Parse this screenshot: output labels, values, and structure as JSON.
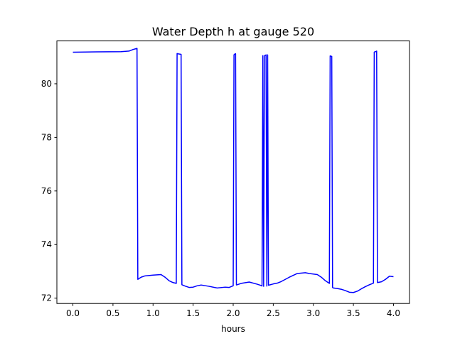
{
  "chart_data": {
    "type": "line",
    "title": "Water Depth h at gauge 520",
    "xlabel": "hours",
    "ylabel": "",
    "xlim": [
      -0.2,
      4.2
    ],
    "ylim": [
      71.8,
      81.6
    ],
    "xticks": [
      0.0,
      0.5,
      1.0,
      1.5,
      2.0,
      2.5,
      3.0,
      3.5,
      4.0
    ],
    "xtick_labels": [
      "0.0",
      "0.5",
      "1.0",
      "1.5",
      "2.0",
      "2.5",
      "3.0",
      "3.5",
      "4.0"
    ],
    "yticks": [
      72,
      74,
      76,
      78,
      80
    ],
    "ytick_labels": [
      "72",
      "74",
      "76",
      "78",
      "80"
    ],
    "grid": false,
    "series": [
      {
        "color": "#0000ff",
        "x": [
          0.0,
          0.3,
          0.6,
          0.7,
          0.75,
          0.8,
          0.81,
          0.85,
          0.9,
          1.0,
          1.1,
          1.15,
          1.2,
          1.25,
          1.29,
          1.3,
          1.31,
          1.35,
          1.36,
          1.4,
          1.45,
          1.5,
          1.55,
          1.6,
          1.7,
          1.8,
          1.9,
          1.95,
          2.0,
          2.01,
          2.02,
          2.03,
          2.04,
          2.1,
          2.2,
          2.3,
          2.35,
          2.36,
          2.37,
          2.38,
          2.39,
          2.4,
          2.41,
          2.42,
          2.43,
          2.44,
          2.5,
          2.55,
          2.6,
          2.7,
          2.8,
          2.9,
          2.95,
          3.0,
          3.05,
          3.1,
          3.15,
          3.2,
          3.21,
          3.22,
          3.23,
          3.24,
          3.25,
          3.3,
          3.35,
          3.4,
          3.45,
          3.5,
          3.55,
          3.6,
          3.65,
          3.7,
          3.75,
          3.76,
          3.77,
          3.78,
          3.79,
          3.8,
          3.85,
          3.9,
          3.95,
          4.0
        ],
        "y": [
          81.18,
          81.19,
          81.2,
          81.22,
          81.28,
          81.32,
          72.7,
          72.78,
          72.83,
          72.86,
          72.88,
          72.78,
          72.65,
          72.58,
          72.55,
          81.13,
          81.12,
          81.1,
          72.5,
          72.45,
          72.4,
          72.41,
          72.46,
          72.49,
          72.44,
          72.38,
          72.41,
          72.4,
          72.46,
          81.08,
          81.11,
          81.12,
          72.49,
          72.55,
          72.6,
          72.52,
          72.47,
          72.45,
          81.05,
          72.44,
          81.05,
          81.06,
          81.08,
          72.45,
          81.08,
          72.48,
          72.53,
          72.56,
          72.62,
          72.78,
          72.92,
          72.95,
          72.92,
          72.9,
          72.88,
          72.78,
          72.65,
          72.55,
          81.04,
          81.03,
          81.02,
          72.4,
          72.38,
          72.36,
          72.33,
          72.28,
          72.22,
          72.21,
          72.26,
          72.35,
          72.43,
          72.5,
          72.56,
          81.18,
          81.2,
          81.2,
          81.22,
          72.58,
          72.61,
          72.7,
          72.82,
          72.8
        ]
      }
    ]
  }
}
